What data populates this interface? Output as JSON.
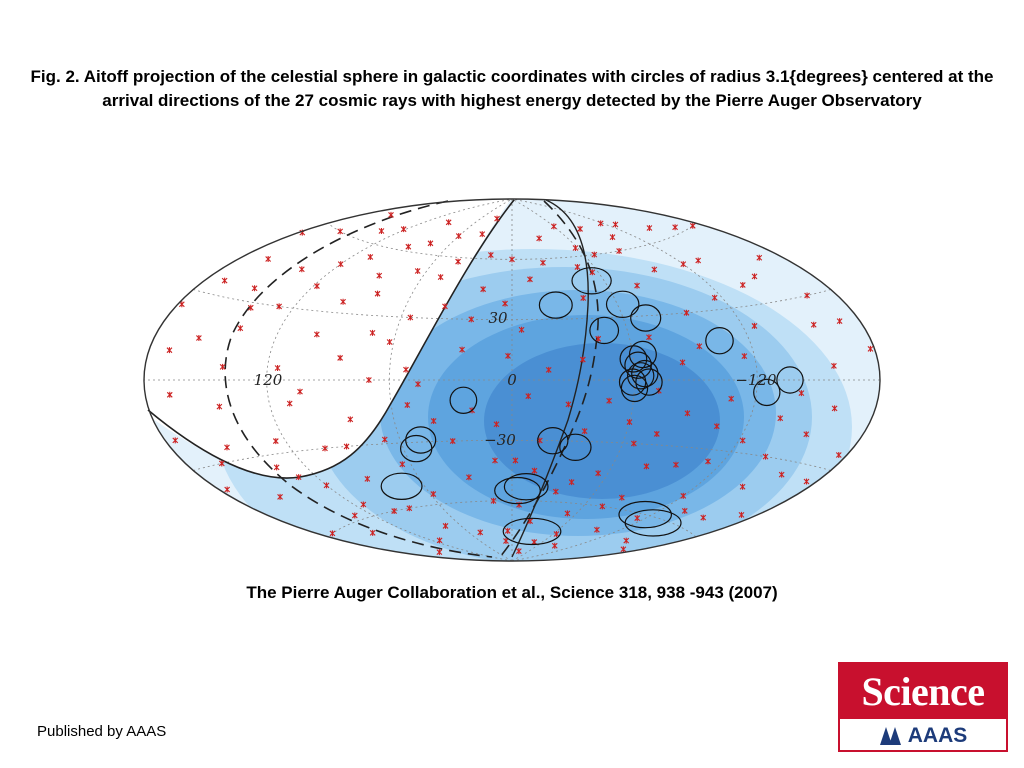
{
  "caption": "Fig. 2. Aitoff projection of the celestial sphere in galactic coordinates with circles of radius 3.1{degrees} centered at the arrival directions of the 27 cosmic rays with highest energy detected by the Pierre Auger Observatory",
  "citation": "The Pierre Auger Collaboration et al.,  Science  318, 938 -943 (2007)",
  "publisher": "Published by AAAS",
  "logo": {
    "word": "Science",
    "sub": "AAAS"
  },
  "figure": {
    "tick_labels": {
      "lat_30": "30",
      "lat_0": "0",
      "lat_m30": "−30",
      "lon_120": "120",
      "lon_m120": "−120"
    },
    "colors": {
      "exposure_bands": [
        "#cfe8f9",
        "#a6d3f2",
        "#7cbceb",
        "#5ea6e0",
        "#4a8fd2"
      ],
      "source_marker": "#cc2222",
      "event_circle": "#111111",
      "grid": "#888888",
      "outline": "#333333"
    },
    "event_count": 27,
    "circle_radius_deg": 3.1,
    "events": [
      [
        -52,
        48
      ],
      [
        -63,
        36
      ],
      [
        -72,
        29
      ],
      [
        -65,
        12
      ],
      [
        -60,
        10
      ],
      [
        -62,
        7
      ],
      [
        -65,
        3
      ],
      [
        -63,
        2
      ],
      [
        -67,
        -1
      ],
      [
        -59,
        -1
      ],
      [
        -60,
        -4
      ],
      [
        -48,
        24
      ],
      [
        -25,
        37
      ],
      [
        -105,
        17
      ],
      [
        -125,
        -5
      ],
      [
        -136,
        0
      ],
      [
        -115,
        -60
      ],
      [
        -132,
        -62
      ],
      [
        -28,
        -75
      ],
      [
        -35,
        -33
      ],
      [
        -10,
        -53
      ],
      [
        -4,
        -55
      ],
      [
        24,
        -10
      ],
      [
        49,
        -29
      ],
      [
        53,
        -33
      ],
      [
        75,
        -50
      ],
      [
        -22,
        -30
      ]
    ],
    "sources": [
      [
        150,
        35
      ],
      [
        160,
        60
      ],
      [
        120,
        50
      ],
      [
        140,
        20
      ],
      [
        170,
        10
      ],
      [
        110,
        -10
      ],
      [
        130,
        -40
      ],
      [
        100,
        -60
      ],
      [
        90,
        -30
      ],
      [
        80,
        40
      ],
      [
        60,
        70
      ],
      [
        30,
        80
      ],
      [
        0,
        60
      ],
      [
        -30,
        70
      ],
      [
        -60,
        75
      ],
      [
        -90,
        60
      ],
      [
        -120,
        50
      ],
      [
        -150,
        40
      ],
      [
        -170,
        20
      ],
      [
        -160,
        -10
      ],
      [
        -140,
        -30
      ],
      [
        -120,
        -50
      ],
      [
        -100,
        -70
      ],
      [
        -80,
        -40
      ],
      [
        -60,
        -20
      ],
      [
        -40,
        -50
      ],
      [
        -20,
        -70
      ],
      [
        10,
        -40
      ],
      [
        40,
        -20
      ],
      [
        70,
        0
      ],
      [
        100,
        20
      ],
      [
        125,
        -25
      ],
      [
        155,
        -45
      ],
      [
        175,
        -20
      ],
      [
        165,
        45
      ],
      [
        135,
        65
      ],
      [
        95,
        75
      ],
      [
        55,
        30
      ],
      [
        25,
        15
      ],
      [
        -5,
        25
      ],
      [
        -35,
        10
      ],
      [
        -70,
        20
      ],
      [
        -95,
        30
      ],
      [
        -115,
        10
      ],
      [
        -135,
        -15
      ],
      [
        -155,
        -55
      ],
      [
        -175,
        -35
      ],
      [
        -165,
        30
      ],
      [
        -145,
        65
      ],
      [
        -105,
        -20
      ],
      [
        -75,
        -60
      ],
      [
        -45,
        -80
      ],
      [
        -15,
        -30
      ],
      [
        15,
        -60
      ],
      [
        45,
        -75
      ],
      [
        65,
        -40
      ],
      [
        85,
        10
      ],
      [
        115,
        5
      ],
      [
        145,
        -10
      ],
      [
        172,
        -60
      ],
      [
        158,
        15
      ],
      [
        128,
        30
      ],
      [
        108,
        55
      ],
      [
        78,
        65
      ],
      [
        48,
        50
      ],
      [
        18,
        45
      ],
      [
        -12,
        50
      ],
      [
        -42,
        40
      ],
      [
        -56,
        52
      ],
      [
        -84,
        8
      ],
      [
        -98,
        50
      ],
      [
        -128,
        70
      ],
      [
        -158,
        5
      ],
      [
        -172,
        -50
      ],
      [
        -148,
        -70
      ],
      [
        -112,
        -35
      ],
      [
        -88,
        -15
      ],
      [
        -66,
        -30
      ],
      [
        -52,
        -65
      ],
      [
        -28,
        -12
      ],
      [
        -8,
        -8
      ],
      [
        8,
        -22
      ],
      [
        28,
        -48
      ],
      [
        52,
        -12
      ],
      [
        72,
        22
      ],
      [
        92,
        -45
      ],
      [
        112,
        -75
      ],
      [
        138,
        45
      ],
      [
        152,
        -25
      ],
      [
        168,
        -5
      ],
      [
        178,
        55
      ],
      [
        -178,
        10
      ],
      [
        -138,
        38
      ],
      [
        -118,
        72
      ],
      [
        -92,
        -80
      ],
      [
        -72,
        -5
      ],
      [
        -48,
        -10
      ],
      [
        -18,
        5
      ],
      [
        2,
        12
      ],
      [
        22,
        30
      ],
      [
        42,
        58
      ],
      [
        62,
        18
      ],
      [
        82,
        -18
      ],
      [
        102,
        -30
      ],
      [
        122,
        68
      ],
      [
        142,
        5
      ],
      [
        162,
        -30
      ],
      [
        -32,
        -55
      ],
      [
        -58,
        64
      ],
      [
        -78,
        44
      ],
      [
        -108,
        -8
      ],
      [
        -126,
        22
      ],
      [
        -146,
        -42
      ],
      [
        -162,
        62
      ],
      [
        176,
        -38
      ],
      [
        132,
        -58
      ],
      [
        88,
        48
      ],
      [
        58,
        -55
      ],
      [
        36,
        72
      ],
      [
        12,
        -80
      ],
      [
        -6,
        -62
      ],
      [
        -24,
        58
      ],
      [
        -44,
        20
      ],
      [
        -54,
        -45
      ],
      [
        -68,
        60
      ],
      [
        -82,
        -55
      ],
      [
        -96,
        -38
      ],
      [
        -102,
        66
      ],
      [
        -122,
        -25
      ],
      [
        -142,
        -5
      ],
      [
        -156,
        20
      ],
      [
        -168,
        45
      ],
      [
        -176,
        -25
      ],
      [
        178,
        25
      ],
      [
        164,
        70
      ],
      [
        148,
        -65
      ],
      [
        136,
        -35
      ],
      [
        118,
        40
      ],
      [
        104,
        -5
      ],
      [
        96,
        35
      ],
      [
        76,
        -70
      ],
      [
        66,
        52
      ],
      [
        46,
        -2
      ],
      [
        32,
        -30
      ],
      [
        18,
        62
      ],
      [
        4,
        38
      ],
      [
        -14,
        -45
      ],
      [
        -38,
        -25
      ],
      [
        -64,
        -75
      ],
      [
        -86,
        72
      ],
      [
        -114,
        -62
      ],
      [
        -132,
        50
      ],
      [
        -152,
        -20
      ],
      [
        -170,
        -72
      ],
      [
        170,
        35
      ],
      [
        120,
        -45
      ],
      [
        86,
        -60
      ],
      [
        52,
        5
      ],
      [
        20,
        -15
      ],
      [
        -2,
        -40
      ],
      [
        -26,
        -85
      ],
      [
        -48,
        55
      ],
      [
        -76,
        -25
      ],
      [
        -94,
        15
      ],
      [
        -116,
        35
      ],
      [
        -136,
        -55
      ],
      [
        -158,
        -35
      ],
      [
        -174,
        60
      ],
      [
        155,
        -78
      ],
      [
        142,
        28
      ],
      [
        114,
        -55
      ],
      [
        92,
        62
      ],
      [
        68,
        -28
      ],
      [
        38,
        36
      ],
      [
        6,
        -75
      ]
    ]
  }
}
